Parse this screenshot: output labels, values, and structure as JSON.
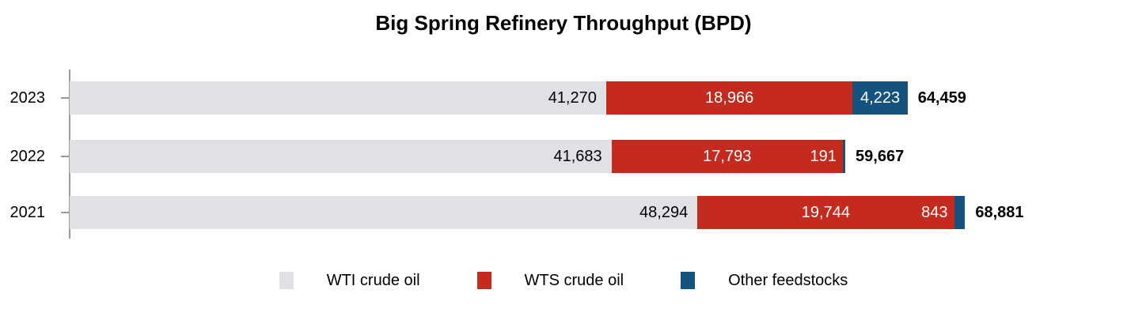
{
  "title": "Big Spring Refinery Throughput (BPD)",
  "colors": {
    "wti_gray": "#E0E1E5",
    "wts_red": "#C42A1E",
    "other_blue": "#15527E",
    "axis_gray": "#9A9A9A",
    "label_on_light": "#000000",
    "label_on_dark": "#FFFFFF",
    "total_text": "#000000",
    "background": "#FFFFFF"
  },
  "chart_data": {
    "type": "bar",
    "orientation": "horizontal",
    "stacked": true,
    "title": "Big Spring Refinery Throughput (BPD)",
    "categories": [
      "2023",
      "2022",
      "2021"
    ],
    "series": [
      {
        "name": "WTI crude oil",
        "color": "#E0E1E5",
        "values": [
          41270,
          41683,
          48294
        ]
      },
      {
        "name": "WTS crude oil",
        "color": "#C42A1E",
        "values": [
          18966,
          17793,
          19744
        ]
      },
      {
        "name": "Other feedstocks",
        "color": "#15527E",
        "values": [
          4223,
          191,
          843
        ]
      }
    ],
    "totals": [
      64459,
      59667,
      68881
    ],
    "value_labels": [
      [
        "41,270",
        "18,966",
        "4,223"
      ],
      [
        "41,683",
        "17,793",
        "191"
      ],
      [
        "48,294",
        "19,744",
        "843"
      ]
    ],
    "total_labels": [
      "64,459",
      "59,667",
      "68,881"
    ],
    "xlim": [
      0,
      80000
    ],
    "grid": false,
    "legend_position": "bottom"
  },
  "legend": {
    "items": [
      {
        "label": "WTI crude oil",
        "color": "#E0E1E5"
      },
      {
        "label": "WTS crude oil",
        "color": "#C42A1E"
      },
      {
        "label": "Other feedstocks",
        "color": "#15527E"
      }
    ]
  }
}
